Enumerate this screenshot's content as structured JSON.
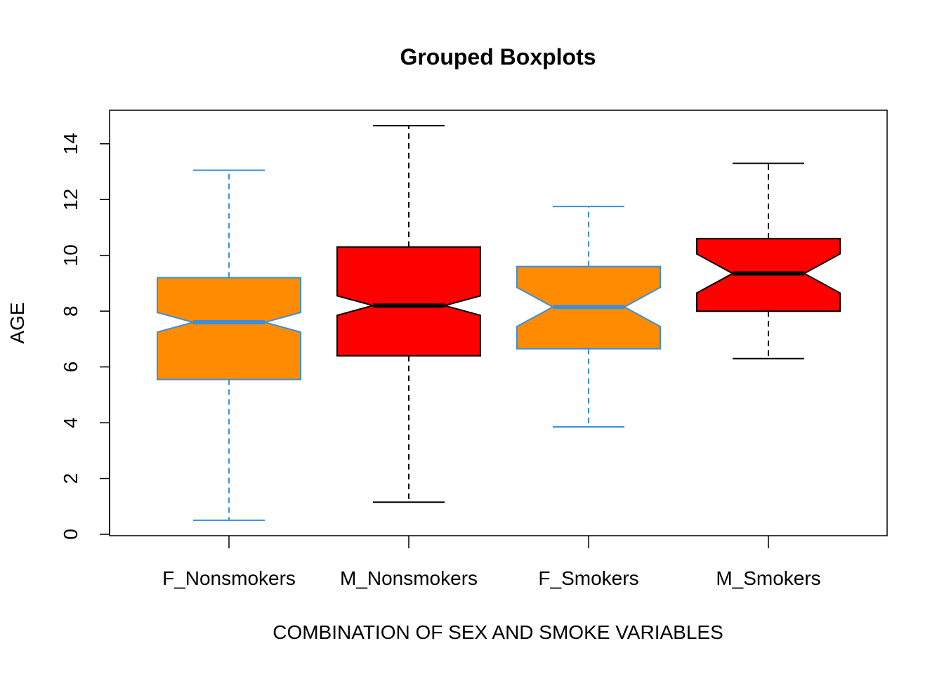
{
  "chart_data": {
    "type": "boxplot",
    "title": "Grouped Boxplots",
    "xlabel": "COMBINATION OF SEX AND SMOKE VARIABLES",
    "ylabel": "AGE",
    "ylim": [
      0,
      15
    ],
    "yticks": [
      0,
      2,
      4,
      6,
      8,
      10,
      12,
      14
    ],
    "notched": true,
    "grid": false,
    "legend": "none",
    "categories": [
      "F_Nonsmokers",
      "M_Nonsmokers",
      "F_Smokers",
      "M_Smokers"
    ],
    "boxes": [
      {
        "category": "F_Nonsmokers",
        "min": 0.5,
        "q1": 5.55,
        "median": 7.6,
        "q3": 9.2,
        "max": 13.05,
        "notch_low": 7.25,
        "notch_high": 7.95,
        "fill": "#FF8C00",
        "border": "#3A8FE0",
        "whisker": "#3A8FE0"
      },
      {
        "category": "M_Nonsmokers",
        "min": 1.15,
        "q1": 6.4,
        "median": 8.2,
        "q3": 10.3,
        "max": 14.65,
        "notch_low": 7.85,
        "notch_high": 8.55,
        "fill": "#FF0000",
        "border": "#000000",
        "whisker": "#000000"
      },
      {
        "category": "F_Smokers",
        "min": 3.85,
        "q1": 6.65,
        "median": 8.15,
        "q3": 9.6,
        "max": 11.75,
        "notch_low": 7.45,
        "notch_high": 8.85,
        "fill": "#FF8C00",
        "border": "#3A8FE0",
        "whisker": "#3A8FE0"
      },
      {
        "category": "M_Smokers",
        "min": 6.3,
        "q1": 8.0,
        "median": 9.35,
        "q3": 10.6,
        "max": 13.3,
        "notch_low": 8.65,
        "notch_high": 10.05,
        "fill": "#FF0000",
        "border": "#000000",
        "whisker": "#000000"
      }
    ]
  }
}
